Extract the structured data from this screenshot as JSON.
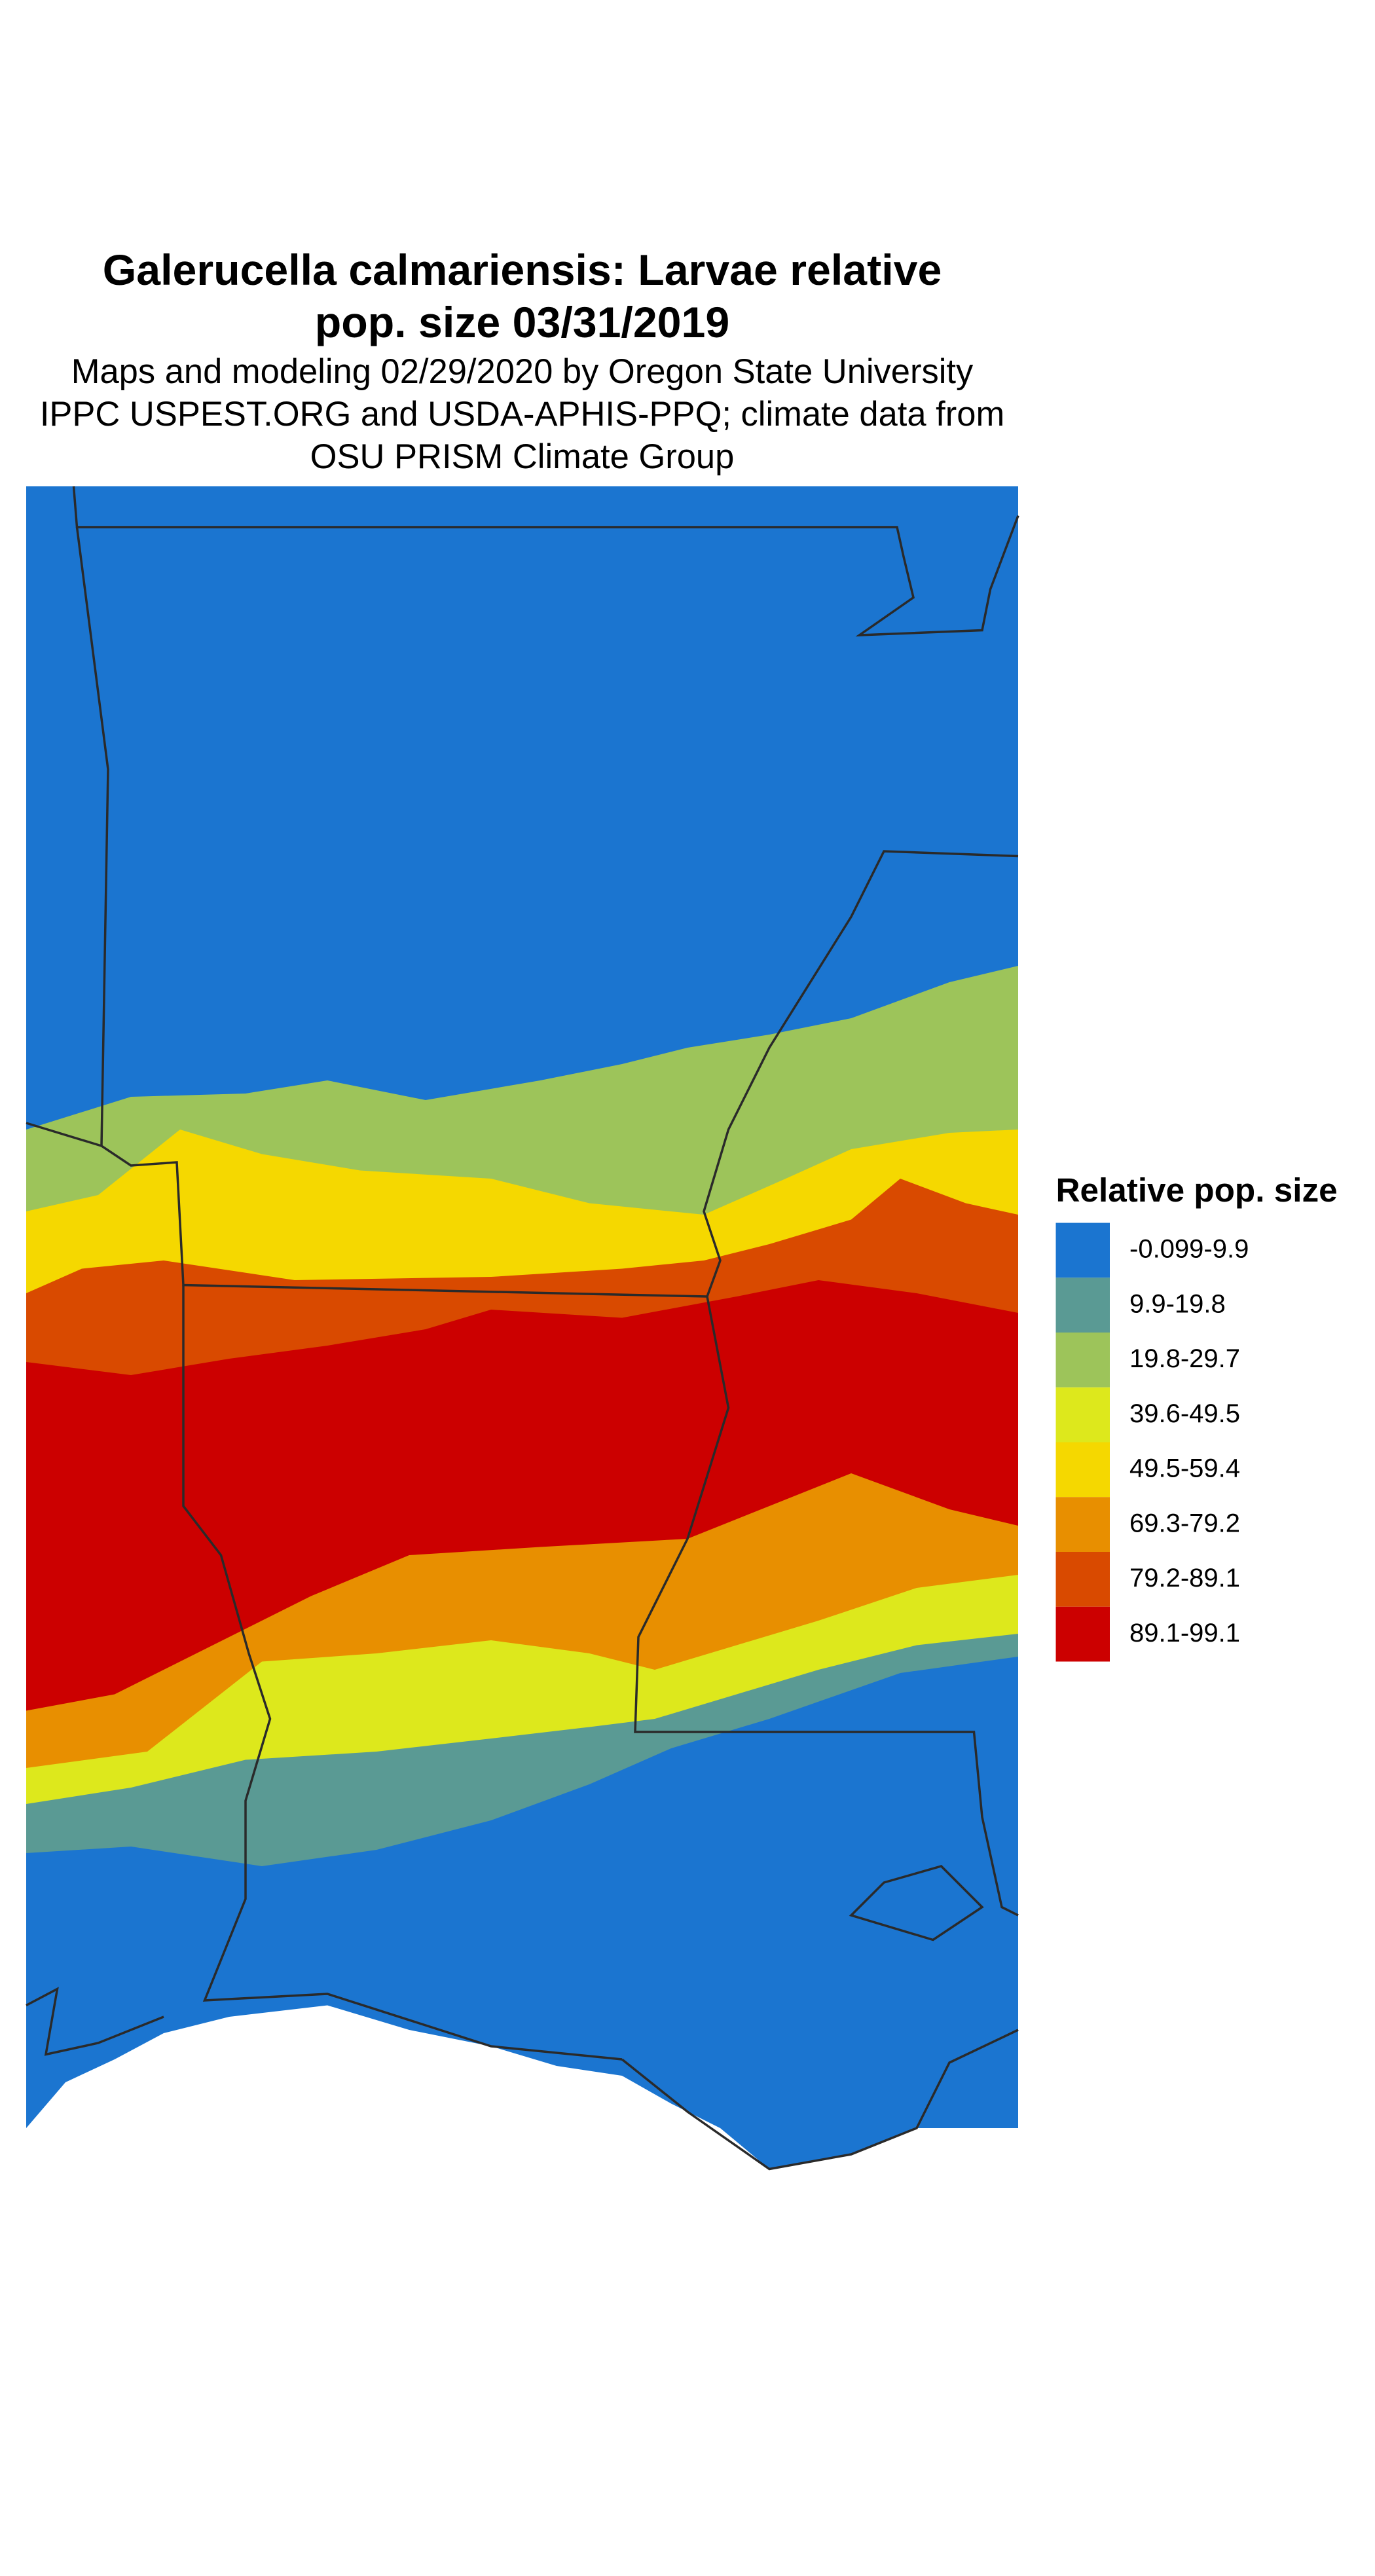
{
  "header": {
    "title": [
      "Galerucella calmariensis: Larvae relative",
      "pop. size 03/31/2019"
    ],
    "subtitle": [
      "Maps and modeling 02/29/2020 by Oregon State University",
      "IPPC USPEST.ORG and USDA-APHIS-PPQ; climate data from",
      "OSU PRISM Climate Group"
    ]
  },
  "legend": {
    "title": "Relative pop. size",
    "items": [
      {
        "label": "-0.099-9.9",
        "color": "#1b75d0"
      },
      {
        "label": "9.9-19.8",
        "color": "#5a9a94"
      },
      {
        "label": "19.8-29.7",
        "color": "#9dc45a"
      },
      {
        "label": "39.6-49.5",
        "color": "#dde81c"
      },
      {
        "label": "49.5-59.4",
        "color": "#f5d800"
      },
      {
        "label": "69.3-79.2",
        "color": "#e88f00"
      },
      {
        "label": "79.2-89.1",
        "color": "#d94a00"
      },
      {
        "label": "89.1-99.1",
        "color": "#cc0000"
      }
    ]
  }
}
